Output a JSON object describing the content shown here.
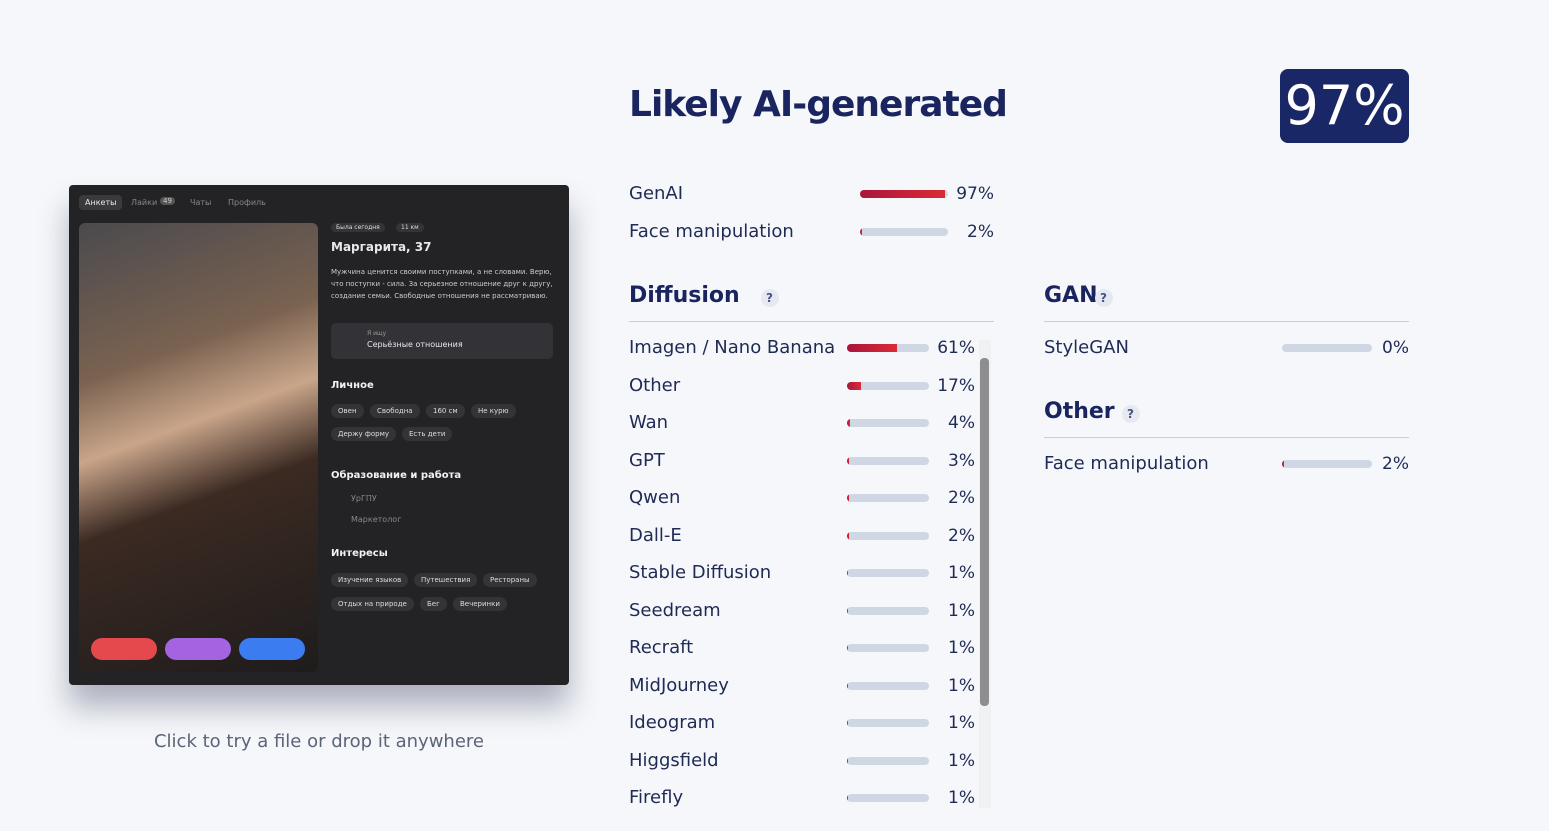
{
  "header": {
    "title": "Likely AI-generated",
    "score": {
      "value": 97,
      "label": "97%"
    }
  },
  "summary": [
    {
      "name": "GenAI",
      "value": 97,
      "label": "97%"
    },
    {
      "name": "Face manipulation",
      "value": 2,
      "label": "2%"
    }
  ],
  "diffusion": {
    "title": "Diffusion",
    "help": "?",
    "rows": [
      {
        "name": "Imagen / Nano Banana",
        "value": 61,
        "label": "61%"
      },
      {
        "name": "Other",
        "value": 17,
        "label": "17%"
      },
      {
        "name": "Wan",
        "value": 4,
        "label": "4%"
      },
      {
        "name": "GPT",
        "value": 3,
        "label": "3%"
      },
      {
        "name": "Qwen",
        "value": 2,
        "label": "2%"
      },
      {
        "name": "Dall-E",
        "value": 2,
        "label": "2%"
      },
      {
        "name": "Stable Diffusion",
        "value": 1,
        "label": "1%"
      },
      {
        "name": "Seedream",
        "value": 1,
        "label": "1%"
      },
      {
        "name": "Recraft",
        "value": 1,
        "label": "1%"
      },
      {
        "name": "MidJourney",
        "value": 1,
        "label": "1%"
      },
      {
        "name": "Ideogram",
        "value": 1,
        "label": "1%"
      },
      {
        "name": "Higgsfield",
        "value": 1,
        "label": "1%"
      },
      {
        "name": "Firefly",
        "value": 1,
        "label": "1%"
      }
    ]
  },
  "gan": {
    "title": "GAN",
    "help": "?",
    "rows": [
      {
        "name": "StyleGAN",
        "value": 0,
        "label": "0%"
      }
    ]
  },
  "other": {
    "title": "Other",
    "help": "?",
    "rows": [
      {
        "name": "Face manipulation",
        "value": 2,
        "label": "2%"
      }
    ]
  },
  "upload": {
    "caption": "Click to try a file or drop it anywhere",
    "preview": {
      "tabs": [
        "Анкеты",
        "Лайки",
        "Чаты",
        "Профиль"
      ],
      "likes_count": "49",
      "status": "Была сегодня",
      "distance": "11 км",
      "name": "Маргарита, 37",
      "quote": "Мужчина ценится своими поступками, а не словами. Верю, что поступки - сила. За серьезное отношение друг к другу, создание семьи. Свободные отношения не рассматриваю.",
      "looking_for_label": "Я ищу",
      "looking_for": "Серьёзные отношения",
      "personal_title": "Личное",
      "personal": [
        "Овен",
        "Свободна",
        "160 см",
        "Не курю",
        "Держу форму",
        "Есть дети"
      ],
      "education_title": "Образование и работа",
      "education": [
        "УрГПУ",
        "Маркетолог"
      ],
      "interests_title": "Интересы",
      "interests": [
        "Изучение языков",
        "Путешествия",
        "Рестораны",
        "Отдых на природе",
        "Бег",
        "Вечеринки"
      ]
    }
  }
}
